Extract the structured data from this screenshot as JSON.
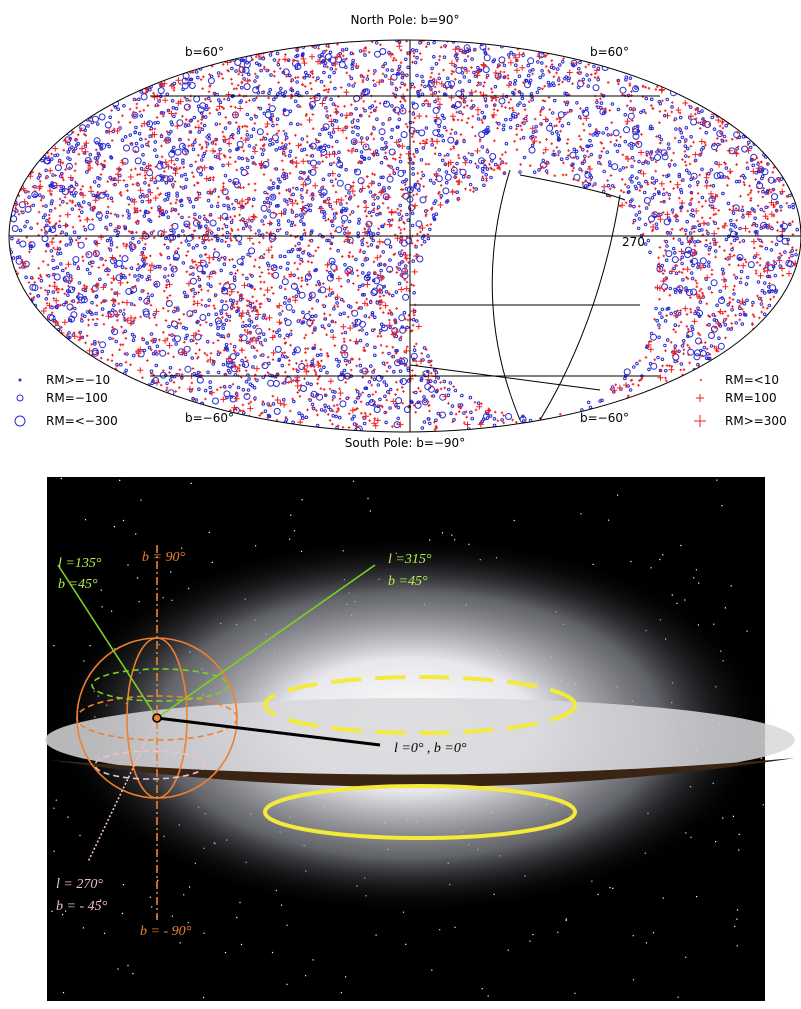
{
  "sky_map": {
    "north_label": "North Pole: b=90°",
    "south_label": "South Pole: b=−90°",
    "grid_labels": [
      "b=60°",
      "b=60°",
      "b=−60°",
      "b=−60°",
      "270"
    ],
    "legend_left": [
      "RM>=−10",
      "RM=−100",
      "RM=<−300"
    ],
    "legend_right": [
      "RM=<10",
      "RM=100",
      "RM>=300"
    ]
  },
  "galaxy": {
    "labels": [
      "l =135°",
      "b =45°",
      "b = 90°",
      "l =315°",
      "b =45°",
      "l =0°  ,  b =0°",
      "l = 270°",
      "b = - 45°",
      "b = - 90°"
    ]
  }
}
